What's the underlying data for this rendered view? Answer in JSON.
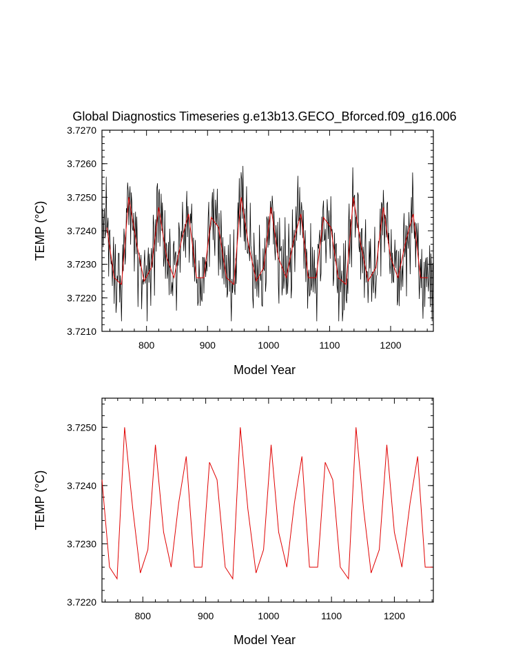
{
  "chart_data": [
    {
      "type": "line",
      "title": "Global Diagnostics Timeseries g.e13b13.GECO_Bforced.f09_g16.006",
      "xlabel": "Model Year",
      "ylabel": "TEMP (°C)",
      "xlim": [
        727,
        1270
      ],
      "ylim": [
        3.721,
        3.727
      ],
      "grid": false,
      "x_ticks": [
        800,
        900,
        1000,
        1100,
        1200
      ],
      "x_tick_labels": [
        "800",
        "900",
        "1000",
        "1100",
        "1200"
      ],
      "y_ticks": [
        3.721,
        3.722,
        3.723,
        3.724,
        3.725,
        3.726,
        3.727
      ],
      "y_tick_labels": [
        "3.7210",
        "3.7220",
        "3.7230",
        "3.7240",
        "3.7250",
        "3.7260",
        "3.7270"
      ],
      "monthly_series": {
        "color": "#000000",
        "x_start": 727,
        "x_end": 1270,
        "cycle_length_years": 49,
        "cycle_phase_year": 770,
        "annual_range": [
          3.7213,
          3.7262
        ],
        "description_values_note": "monthly values oscillating with the annual means"
      },
      "series": [
        {
          "color": "#e00000",
          "x": [
            735,
            747,
            759,
            771,
            784,
            796,
            808,
            820,
            833,
            845,
            857,
            869,
            882,
            894,
            906,
            918,
            931,
            943,
            955,
            967,
            980,
            992,
            1004,
            1016,
            1029,
            1041,
            1053,
            1065,
            1078,
            1090,
            1102,
            1114,
            1127,
            1139,
            1151,
            1163,
            1176,
            1188,
            1200,
            1212,
            1225,
            1237,
            1249,
            1261
          ],
          "values": [
            3.7241,
            3.7226,
            3.7224,
            3.725,
            3.7236,
            3.7225,
            3.7229,
            3.7247,
            3.7232,
            3.7226,
            3.7237,
            3.7245,
            3.7226,
            3.7226,
            3.7244,
            3.7241,
            3.7226,
            3.7224,
            3.725,
            3.7236,
            3.7225,
            3.7229,
            3.7247,
            3.7232,
            3.7226,
            3.7237,
            3.7245,
            3.7226,
            3.7226,
            3.7244,
            3.7241,
            3.7226,
            3.7224,
            3.725,
            3.7236,
            3.7225,
            3.7229,
            3.7247,
            3.7232,
            3.7226,
            3.7237,
            3.7245,
            3.7226,
            3.7226
          ]
        }
      ]
    },
    {
      "type": "line",
      "title": "",
      "xlabel": "Model Year",
      "ylabel": "TEMP (°C)",
      "xlim": [
        735,
        1262
      ],
      "ylim": [
        3.722,
        3.7255
      ],
      "grid": false,
      "x_ticks": [
        800,
        900,
        1000,
        1100,
        1200
      ],
      "x_tick_labels": [
        "800",
        "900",
        "1000",
        "1100",
        "1200"
      ],
      "y_ticks": [
        3.722,
        3.723,
        3.724,
        3.725
      ],
      "y_tick_labels": [
        "3.7220",
        "3.7230",
        "3.7240",
        "3.7250"
      ],
      "series": [
        {
          "color": "#e00000",
          "x": [
            735,
            747,
            759,
            771,
            784,
            796,
            808,
            820,
            833,
            845,
            857,
            869,
            882,
            894,
            906,
            918,
            931,
            943,
            955,
            967,
            980,
            992,
            1004,
            1016,
            1029,
            1041,
            1053,
            1065,
            1078,
            1090,
            1102,
            1114,
            1127,
            1139,
            1151,
            1163,
            1176,
            1188,
            1200,
            1212,
            1225,
            1237,
            1249,
            1261
          ],
          "values": [
            3.7241,
            3.7226,
            3.7224,
            3.725,
            3.7236,
            3.7225,
            3.7229,
            3.7247,
            3.7232,
            3.7226,
            3.7237,
            3.7245,
            3.7226,
            3.7226,
            3.7244,
            3.7241,
            3.7226,
            3.7224,
            3.725,
            3.7236,
            3.7225,
            3.7229,
            3.7247,
            3.7232,
            3.7226,
            3.7237,
            3.7245,
            3.7226,
            3.7226,
            3.7244,
            3.7241,
            3.7226,
            3.7224,
            3.725,
            3.7236,
            3.7225,
            3.7229,
            3.7247,
            3.7232,
            3.7226,
            3.7237,
            3.7245,
            3.7226,
            3.7226
          ]
        }
      ]
    }
  ]
}
